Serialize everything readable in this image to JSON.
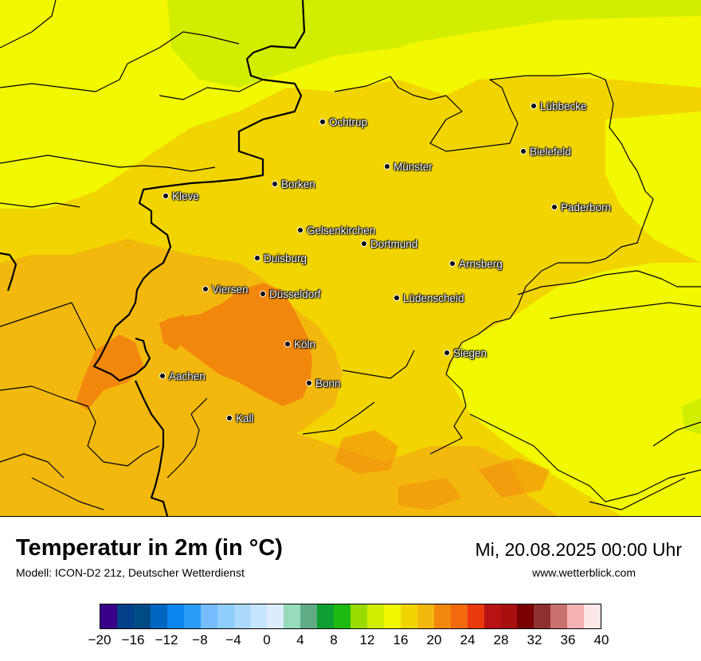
{
  "map": {
    "cities": [
      {
        "name": "Lübbecke"
      },
      {
        "name": "Ochtrup"
      },
      {
        "name": "Bielefeld"
      },
      {
        "name": "Münster"
      },
      {
        "name": "Borken"
      },
      {
        "name": "Kleve"
      },
      {
        "name": "Paderborn"
      },
      {
        "name": "Gelsenkirchen"
      },
      {
        "name": "Dortmund"
      },
      {
        "name": "Duisburg"
      },
      {
        "name": "Arnsberg"
      },
      {
        "name": "Viersen"
      },
      {
        "name": "Düsseldorf"
      },
      {
        "name": "Lüdenscheid"
      },
      {
        "name": "Köln"
      },
      {
        "name": "Siegen"
      },
      {
        "name": "Aachen"
      },
      {
        "name": "Bonn"
      },
      {
        "name": "Kall"
      }
    ]
  },
  "footer": {
    "title": "Temperatur in 2m (in °C)",
    "model": "Modell: ICON-D2 21z, Deutscher Wetterdienst",
    "datetime": "Mi, 20.08.2025 00:00 Uhr",
    "website": "www.wetterblick.com"
  },
  "legend": {
    "colors": [
      "#3a0088",
      "#013f8a",
      "#014b85",
      "#0166c2",
      "#0a85ee",
      "#2a9cf7",
      "#74bcfb",
      "#8fcdfc",
      "#acd8fc",
      "#c6e4fd",
      "#dcecfd",
      "#96dcbc",
      "#61ac87",
      "#0e9e33",
      "#1dbb12",
      "#99db00",
      "#d1ee00",
      "#f2f800",
      "#f2d400",
      "#f2b80e",
      "#f2870e",
      "#f2690e",
      "#e83a0c",
      "#b81313",
      "#a81010",
      "#7a0000",
      "#8e3030",
      "#c87070",
      "#f5b2b2",
      "#fde6e6"
    ],
    "ticks": [
      "−20",
      "−16",
      "−12",
      "−8",
      "−4",
      "0",
      "4",
      "8",
      "12",
      "16",
      "20",
      "24",
      "28",
      "32",
      "36",
      "40"
    ]
  }
}
